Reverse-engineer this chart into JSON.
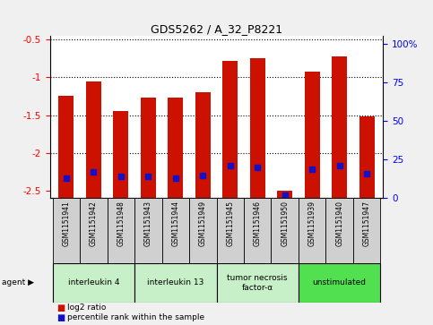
{
  "title": "GDS5262 / A_32_P8221",
  "samples": [
    "GSM1151941",
    "GSM1151942",
    "GSM1151948",
    "GSM1151943",
    "GSM1151944",
    "GSM1151949",
    "GSM1151945",
    "GSM1151946",
    "GSM1151950",
    "GSM1151939",
    "GSM1151940",
    "GSM1151947"
  ],
  "log2_ratio": [
    -1.25,
    -1.05,
    -1.45,
    -1.27,
    -1.27,
    -1.2,
    -0.78,
    -0.75,
    -2.5,
    -0.92,
    -0.72,
    -1.52
  ],
  "percentile_rank": [
    13,
    17,
    14,
    14,
    13,
    15,
    21,
    20,
    2,
    19,
    21,
    16
  ],
  "agents": [
    {
      "label": "interleukin 4",
      "start": 0,
      "end": 3,
      "color": "#c8f0c8"
    },
    {
      "label": "interleukin 13",
      "start": 3,
      "end": 6,
      "color": "#c8f0c8"
    },
    {
      "label": "tumor necrosis\nfactor-α",
      "start": 6,
      "end": 9,
      "color": "#c8f0c8"
    },
    {
      "label": "unstimulated",
      "start": 9,
      "end": 12,
      "color": "#50e050"
    }
  ],
  "bar_color": "#cc1100",
  "dot_color": "#1111cc",
  "ylim_left": [
    -2.6,
    -0.45
  ],
  "ylim_right": [
    0,
    105
  ],
  "yticks_left": [
    -2.5,
    -2.0,
    -1.5,
    -1.0,
    -0.5
  ],
  "ytick_labels_left": [
    "-2.5",
    "-2",
    "-1.5",
    "-1",
    "-0.5"
  ],
  "yticks_right": [
    0,
    25,
    50,
    75,
    100
  ],
  "ytick_labels_right": [
    "0",
    "25",
    "50",
    "75",
    "100%"
  ],
  "plot_bg_color": "#ffffff",
  "fig_bg_color": "#f0f0f0",
  "bar_width": 0.55,
  "dot_size": 18
}
